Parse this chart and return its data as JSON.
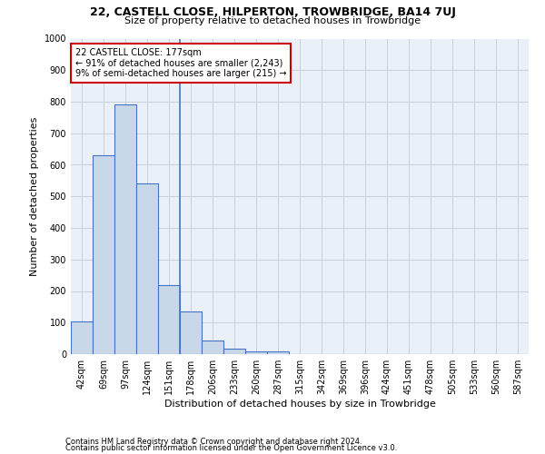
{
  "title1": "22, CASTELL CLOSE, HILPERTON, TROWBRIDGE, BA14 7UJ",
  "title2": "Size of property relative to detached houses in Trowbridge",
  "xlabel": "Distribution of detached houses by size in Trowbridge",
  "ylabel": "Number of detached properties",
  "footer1": "Contains HM Land Registry data © Crown copyright and database right 2024.",
  "footer2": "Contains public sector information licensed under the Open Government Licence v3.0.",
  "categories": [
    "42sqm",
    "69sqm",
    "97sqm",
    "124sqm",
    "151sqm",
    "178sqm",
    "206sqm",
    "233sqm",
    "260sqm",
    "287sqm",
    "315sqm",
    "342sqm",
    "369sqm",
    "396sqm",
    "424sqm",
    "451sqm",
    "478sqm",
    "505sqm",
    "533sqm",
    "560sqm",
    "587sqm"
  ],
  "values": [
    103,
    630,
    790,
    540,
    220,
    135,
    43,
    17,
    10,
    10,
    0,
    0,
    0,
    0,
    0,
    0,
    0,
    0,
    0,
    0,
    0
  ],
  "bar_color": "#c8d8e8",
  "bar_edge_color": "#4472c4",
  "annotation_line1": "22 CASTELL CLOSE: 177sqm",
  "annotation_line2": "← 91% of detached houses are smaller (2,243)",
  "annotation_line3": "9% of semi-detached houses are larger (215) →",
  "annotation_box_color": "#ffffff",
  "annotation_box_edge_color": "#cc0000",
  "property_line_bin": 5,
  "ylim": [
    0,
    1000
  ],
  "yticks": [
    0,
    100,
    200,
    300,
    400,
    500,
    600,
    700,
    800,
    900,
    1000
  ],
  "background_color": "#ffffff",
  "axes_bg_color": "#eaf0f8",
  "grid_color": "#c8d0dc",
  "title1_fontsize": 9,
  "title2_fontsize": 8,
  "ylabel_fontsize": 8,
  "xlabel_fontsize": 8,
  "tick_fontsize": 7,
  "annotation_fontsize": 7,
  "footer_fontsize": 6
}
